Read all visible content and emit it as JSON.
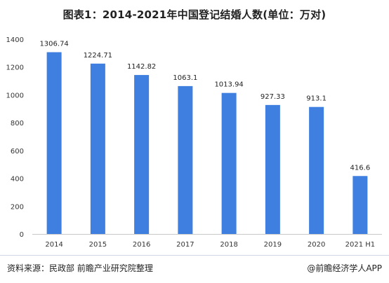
{
  "title": "图表1：2014-2021年中国登记结婚人数(单位：万对)",
  "source": "资料来源：民政部 前瞻产业研究院整理",
  "brand": "@前瞻经济学人APP",
  "colors": {
    "bar": "#3f7fe0",
    "axis": "#c9c9c9",
    "text": "#333333"
  },
  "chart_data": {
    "type": "bar",
    "categories": [
      "2014",
      "2015",
      "2016",
      "2017",
      "2018",
      "2019",
      "2020",
      "2021 H1"
    ],
    "values": [
      1306.74,
      1224.71,
      1142.82,
      1063.1,
      1013.94,
      927.33,
      913.1,
      416.6
    ],
    "value_labels": [
      "1306.74",
      "1224.71",
      "1142.82",
      "1063.1",
      "1013.94",
      "927.33",
      "913.1",
      "416.6"
    ],
    "y_ticks": [
      0,
      200,
      400,
      600,
      800,
      1000,
      1200,
      1400
    ],
    "ylim": [
      0,
      1400
    ],
    "grid": false
  }
}
